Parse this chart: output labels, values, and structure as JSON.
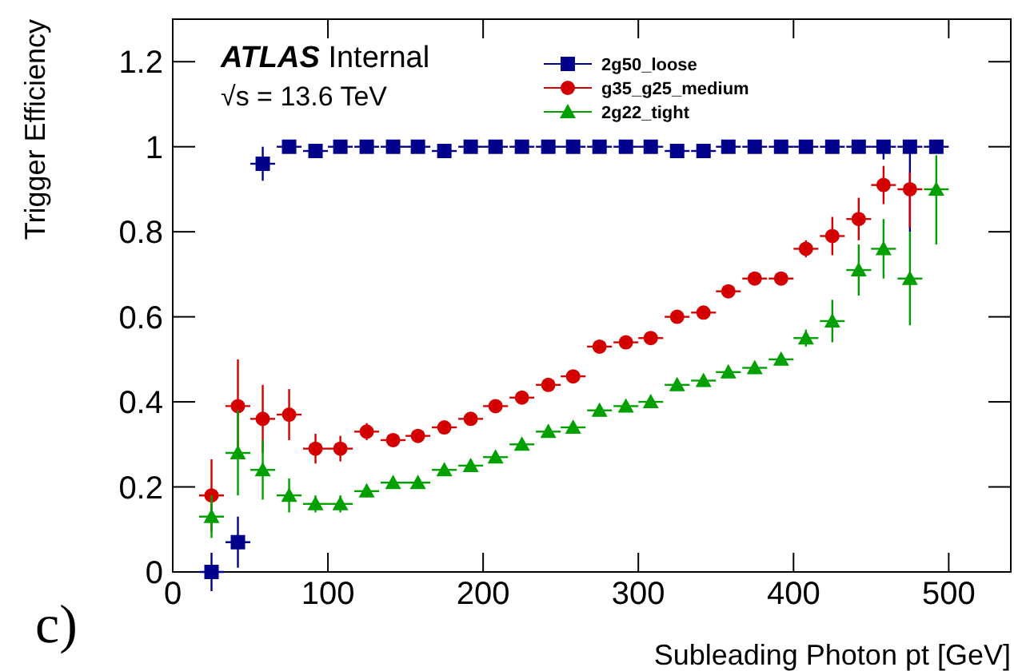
{
  "chart_data": {
    "type": "scatter",
    "xlabel": "Subleading Photon pt [GeV]",
    "ylabel": "Trigger Efficiency",
    "annotations": [
      "ATLAS Internal",
      "√s = 13.6 TeV",
      "c)"
    ],
    "xlim": [
      0,
      540
    ],
    "xticks": [
      0,
      100,
      200,
      300,
      400,
      500
    ],
    "ylim": [
      0,
      1.3
    ],
    "yticks": [
      0,
      0.2,
      0.4,
      0.6,
      0.8,
      1,
      1.2
    ],
    "legend": "top",
    "grid": false,
    "series": [
      {
        "name": "2g50_loose",
        "color": "#00008b",
        "marker": "square",
        "x": [
          25,
          42,
          58,
          75,
          92,
          108,
          125,
          142,
          158,
          175,
          192,
          208,
          225,
          242,
          258,
          275,
          292,
          308,
          325,
          342,
          358,
          375,
          392,
          408,
          425,
          442,
          458,
          475,
          492
        ],
        "values": [
          0,
          0.07,
          0.96,
          1,
          0.99,
          1,
          1,
          1,
          1,
          0.99,
          1,
          1,
          1,
          1,
          1,
          1,
          1,
          1,
          0.99,
          0.99,
          1,
          1,
          1,
          1,
          1,
          1,
          1,
          1,
          1
        ],
        "errors": [
          0.045,
          0.06,
          0.04,
          0.01,
          0.01,
          0.01,
          0.01,
          0.01,
          0.01,
          0.01,
          0.01,
          0.01,
          0.01,
          0.01,
          0.01,
          0.01,
          0.01,
          0.01,
          0.01,
          0.01,
          0.01,
          0.01,
          0.01,
          0.01,
          0.01,
          0.01,
          [
            0.97,
            1
          ],
          [
            0.8,
            1
          ],
          null
        ],
        "xerrors": [
          8,
          8,
          8,
          8,
          8,
          8,
          8,
          8,
          8,
          8,
          8,
          8,
          8,
          8,
          8,
          8,
          8,
          8,
          8,
          8,
          8,
          8,
          8,
          8,
          8,
          8,
          8,
          8,
          8
        ]
      },
      {
        "name": "g35_g25_medium",
        "color": "#d40000",
        "marker": "circle",
        "x": [
          25,
          42,
          58,
          75,
          92,
          108,
          125,
          142,
          158,
          175,
          192,
          208,
          225,
          242,
          258,
          275,
          292,
          308,
          325,
          342,
          358,
          375,
          392,
          408,
          425,
          442,
          458,
          475
        ],
        "values": [
          0.18,
          0.39,
          0.36,
          0.37,
          0.29,
          0.29,
          0.33,
          0.31,
          0.32,
          0.34,
          0.36,
          0.39,
          0.41,
          0.44,
          0.46,
          0.53,
          0.54,
          0.55,
          0.6,
          0.61,
          0.66,
          0.69,
          0.69,
          0.76,
          0.79,
          0.83,
          0.91,
          0.9
        ],
        "errors": [
          0.085,
          0.11,
          0.08,
          0.06,
          0.035,
          0.03,
          0.02,
          0.015,
          0.015,
          0.015,
          0.015,
          0.015,
          0.015,
          0.015,
          0.015,
          0.015,
          0.015,
          0.015,
          0.015,
          0.015,
          0.015,
          0.015,
          0.015,
          0.02,
          0.045,
          0.05,
          0.045,
          [
            0.81,
            0.94
          ]
        ],
        "xerrors": [
          8,
          8,
          8,
          8,
          8,
          8,
          8,
          8,
          8,
          8,
          8,
          8,
          8,
          8,
          8,
          8,
          8,
          8,
          8,
          8,
          8,
          8,
          8,
          8,
          8,
          8,
          8,
          8
        ]
      },
      {
        "name": "2g22_tight",
        "color": "#00a000",
        "marker": "triangle",
        "x": [
          25,
          42,
          58,
          75,
          92,
          108,
          125,
          142,
          158,
          175,
          192,
          208,
          225,
          242,
          258,
          275,
          292,
          308,
          325,
          342,
          358,
          375,
          392,
          408,
          425,
          442,
          458,
          475,
          492
        ],
        "values": [
          0.13,
          0.28,
          0.24,
          0.18,
          0.16,
          0.16,
          0.19,
          0.21,
          0.21,
          0.24,
          0.25,
          0.27,
          0.3,
          0.33,
          0.34,
          0.38,
          0.39,
          0.4,
          0.44,
          0.45,
          0.47,
          0.48,
          0.5,
          0.55,
          0.59,
          0.71,
          0.76,
          0.69,
          0.9
        ],
        "errors": [
          0.05,
          0.1,
          0.07,
          0.04,
          0.02,
          0.02,
          0.015,
          0.01,
          0.01,
          0.01,
          0.01,
          0.01,
          0.01,
          0.01,
          0.01,
          0.01,
          0.01,
          0.01,
          0.01,
          0.01,
          0.01,
          0.01,
          0.01,
          0.02,
          0.05,
          0.06,
          0.07,
          0.11,
          [
            0.77,
            0.98
          ]
        ],
        "xerrors": [
          8,
          8,
          8,
          8,
          8,
          8,
          8,
          8,
          8,
          8,
          8,
          8,
          8,
          8,
          8,
          8,
          8,
          8,
          8,
          8,
          8,
          8,
          8,
          8,
          8,
          8,
          8,
          8,
          8
        ]
      }
    ]
  }
}
